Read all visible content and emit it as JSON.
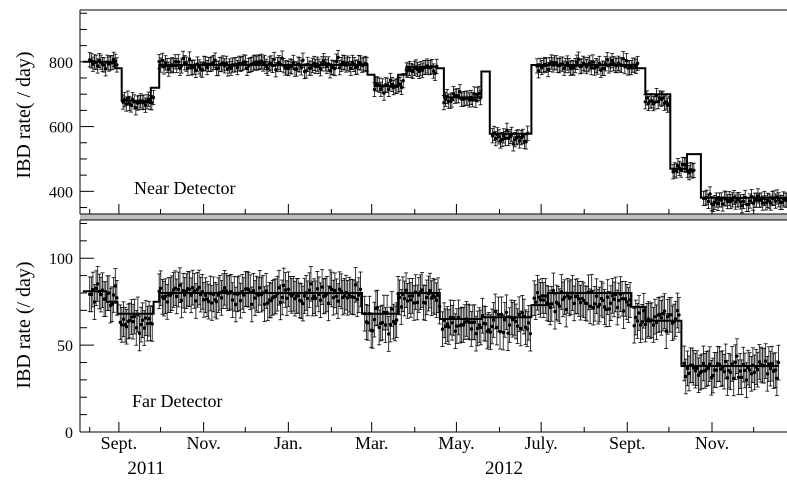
{
  "figure": {
    "x_tick_labels": [
      "Sept.",
      "Nov.",
      "Jan.",
      "Mar.",
      "May.",
      "July.",
      "Sept.",
      "Nov."
    ],
    "year_labels": [
      "2011",
      "2012"
    ]
  },
  "chart_data": [
    {
      "type": "scatter",
      "panel": "top",
      "annotation": "Near Detector",
      "ylabel": "IBD rate( / day)",
      "ylim": [
        330,
        960
      ],
      "yticks": [
        400,
        600,
        800
      ],
      "x_unit": "days since 2011-08-11",
      "xlim": [
        -7,
        502
      ],
      "categories_months": [
        "2011-09-01",
        "2011-11-01",
        "2012-01-01",
        "2012-03-01",
        "2012-05-01",
        "2012-07-01",
        "2012-09-01",
        "2012-11-01"
      ],
      "step_series": {
        "name": "",
        "segments": [
          {
            "x": [
              -5,
              18
            ],
            "y": 800
          },
          {
            "x": [
              18,
              23
            ],
            "y": 780
          },
          {
            "x": [
              23,
              44
            ],
            "y": 680
          },
          {
            "x": [
              44,
              50
            ],
            "y": 720
          },
          {
            "x": [
              50,
              200
            ],
            "y": 790
          },
          {
            "x": [
              200,
              205
            ],
            "y": 760
          },
          {
            "x": [
              205,
              222
            ],
            "y": 725
          },
          {
            "x": [
              222,
              228
            ],
            "y": 760
          },
          {
            "x": [
              228,
              250
            ],
            "y": 785
          },
          {
            "x": [
              250,
              255
            ],
            "y": 780
          },
          {
            "x": [
              255,
              282
            ],
            "y": 690
          },
          {
            "x": [
              282,
              288
            ],
            "y": 770
          },
          {
            "x": [
              288,
              318
            ],
            "y": 578
          },
          {
            "x": [
              318,
              322
            ],
            "y": 790
          },
          {
            "x": [
              322,
              390
            ],
            "y": 790
          },
          {
            "x": [
              390,
              400
            ],
            "y": 780
          },
          {
            "x": [
              400,
              406
            ],
            "y": 700
          },
          {
            "x": [
              406,
              418
            ],
            "y": 700
          },
          {
            "x": [
              418,
              430
            ],
            "y": 470
          },
          {
            "x": [
              430,
              440
            ],
            "y": 515
          },
          {
            "x": [
              440,
              502
            ],
            "y": 380
          }
        ]
      },
      "points_summary": [
        {
          "x_range": [
            0,
            20
          ],
          "mean": 795
        },
        {
          "x_range": [
            24,
            46
          ],
          "mean": 675
        },
        {
          "x_range": [
            50,
            200
          ],
          "mean": 790
        },
        {
          "x_range": [
            205,
            226
          ],
          "mean": 725
        },
        {
          "x_range": [
            228,
            250
          ],
          "mean": 780
        },
        {
          "x_range": [
            255,
            282
          ],
          "mean": 690
        },
        {
          "x_range": [
            290,
            316
          ],
          "mean": 565
        },
        {
          "x_range": [
            322,
            395
          ],
          "mean": 790
        },
        {
          "x_range": [
            400,
            418
          ],
          "mean": 680
        },
        {
          "x_range": [
            420,
            436
          ],
          "mean": 470
        },
        {
          "x_range": [
            442,
            502
          ],
          "mean": 370
        }
      ]
    },
    {
      "type": "scatter",
      "panel": "bottom",
      "annotation": "Far Detector",
      "ylabel": "IBD rate (/ day)",
      "ylim": [
        0,
        122
      ],
      "yticks": [
        0,
        50,
        100
      ],
      "x_unit": "days since 2011-08-11",
      "xlim": [
        -7,
        502
      ],
      "step_series": {
        "name": "",
        "segments": [
          {
            "x": [
              -5,
              12
            ],
            "y": 81
          },
          {
            "x": [
              12,
              20
            ],
            "y": 75
          },
          {
            "x": [
              20,
              46
            ],
            "y": 68
          },
          {
            "x": [
              46,
              50
            ],
            "y": 75
          },
          {
            "x": [
              50,
              196
            ],
            "y": 80
          },
          {
            "x": [
              196,
              222
            ],
            "y": 68
          },
          {
            "x": [
              222,
              252
            ],
            "y": 80
          },
          {
            "x": [
              252,
              282
            ],
            "y": 65
          },
          {
            "x": [
              282,
              318
            ],
            "y": 66
          },
          {
            "x": [
              318,
              330
            ],
            "y": 73
          },
          {
            "x": [
              330,
              390
            ],
            "y": 80
          },
          {
            "x": [
              390,
              400
            ],
            "y": 72
          },
          {
            "x": [
              400,
              426
            ],
            "y": 64
          },
          {
            "x": [
              426,
              496
            ],
            "y": 38
          }
        ]
      },
      "points_summary": [
        {
          "x_range": [
            0,
            20
          ],
          "mean": 78
        },
        {
          "x_range": [
            22,
            46
          ],
          "mean": 62
        },
        {
          "x_range": [
            50,
            196
          ],
          "mean": 79
        },
        {
          "x_range": [
            198,
            222
          ],
          "mean": 64
        },
        {
          "x_range": [
            222,
            252
          ],
          "mean": 77
        },
        {
          "x_range": [
            254,
            318
          ],
          "mean": 63
        },
        {
          "x_range": [
            320,
            390
          ],
          "mean": 76
        },
        {
          "x_range": [
            392,
            425
          ],
          "mean": 65
        },
        {
          "x_range": [
            428,
            496
          ],
          "mean": 36
        }
      ]
    }
  ]
}
